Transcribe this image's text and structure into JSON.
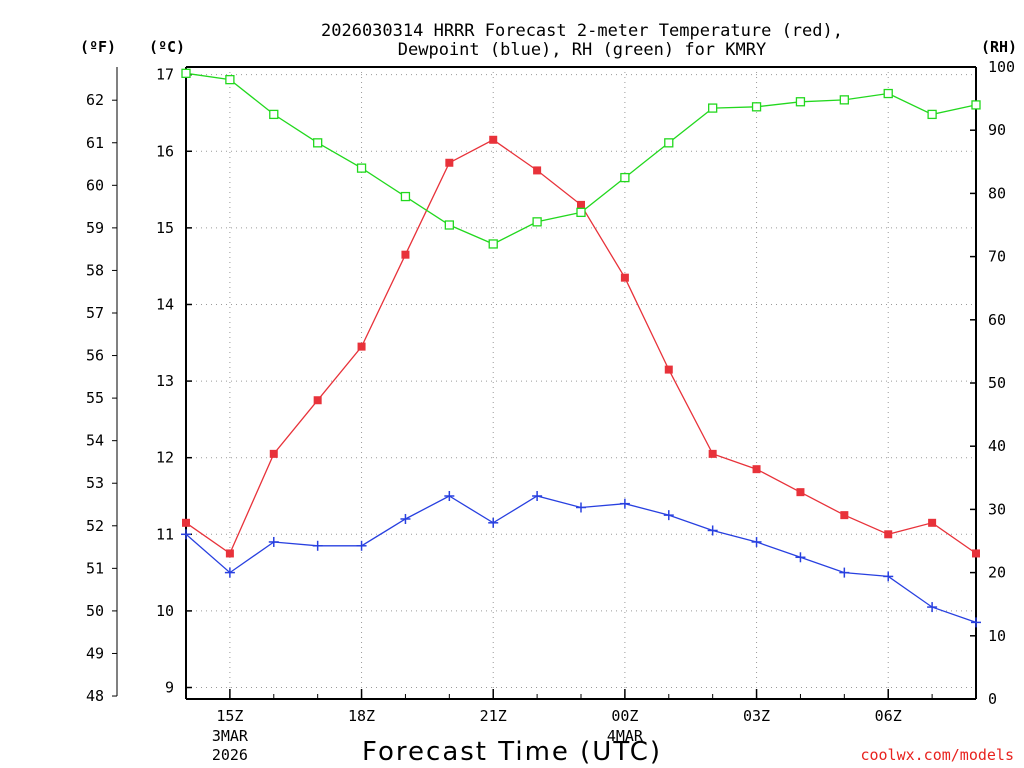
{
  "chart_data": {
    "type": "line",
    "title_line1": "2026030314 HRRR Forecast 2-meter Temperature (red),",
    "title_line2": "Dewpoint (blue), RH (green) for KMRY",
    "xlabel": "Forecast Time (UTC)",
    "credit": "coolwx.com/models",
    "left_unit_f": "(ºF)",
    "left_unit_c": "(ºC)",
    "right_unit": "(RH)",
    "x_hours": [
      14,
      15,
      16,
      17,
      18,
      19,
      20,
      21,
      22,
      23,
      24,
      25,
      26,
      27,
      28,
      29,
      30,
      31,
      32
    ],
    "x_ticks": [
      {
        "hour": 15,
        "label": "15Z",
        "sub1": "3MAR",
        "sub2": "2026"
      },
      {
        "hour": 18,
        "label": "18Z",
        "sub1": "",
        "sub2": ""
      },
      {
        "hour": 21,
        "label": "21Z",
        "sub1": "",
        "sub2": ""
      },
      {
        "hour": 24,
        "label": "00Z",
        "sub1": "4MAR",
        "sub2": ""
      },
      {
        "hour": 27,
        "label": "03Z",
        "sub1": "",
        "sub2": ""
      },
      {
        "hour": 30,
        "label": "06Z",
        "sub1": "",
        "sub2": ""
      }
    ],
    "celsius_ticks": [
      "9",
      "10",
      "11",
      "12",
      "13",
      "14",
      "15",
      "16",
      "17"
    ],
    "fahrenheit_ticks": [
      "48",
      "49",
      "50",
      "51",
      "52",
      "53",
      "54",
      "55",
      "56",
      "57",
      "58",
      "59",
      "60",
      "61",
      "62"
    ],
    "rh_ticks": [
      "0",
      "10",
      "20",
      "30",
      "40",
      "50",
      "60",
      "70",
      "80",
      "90",
      "100"
    ],
    "ylim_celsius": [
      8.85,
      17.1
    ],
    "ylim_rh": [
      0,
      100
    ],
    "series": [
      {
        "name": "Temperature",
        "unit": "C",
        "color": "#e8323a",
        "marker": "filled-square",
        "values": [
          11.15,
          10.75,
          12.05,
          12.75,
          13.45,
          14.65,
          15.85,
          16.15,
          15.75,
          15.3,
          14.35,
          13.15,
          12.05,
          11.85,
          11.55,
          11.25,
          11.0,
          11.15,
          10.75
        ]
      },
      {
        "name": "Dewpoint",
        "unit": "C",
        "color": "#2840e0",
        "marker": "plus",
        "values": [
          11.0,
          10.5,
          10.9,
          10.85,
          10.85,
          11.2,
          11.5,
          11.15,
          11.5,
          11.35,
          11.4,
          11.25,
          11.05,
          10.9,
          10.7,
          10.5,
          10.45,
          10.05,
          9.85
        ]
      },
      {
        "name": "RH",
        "unit": "%",
        "color": "#22d81e",
        "marker": "open-square",
        "values": [
          99,
          98,
          92.5,
          88,
          84,
          79.5,
          75,
          72,
          75.5,
          77,
          82.5,
          88,
          93.5,
          93.7,
          94.5,
          94.8,
          95.8,
          92.5,
          94
        ]
      }
    ]
  }
}
